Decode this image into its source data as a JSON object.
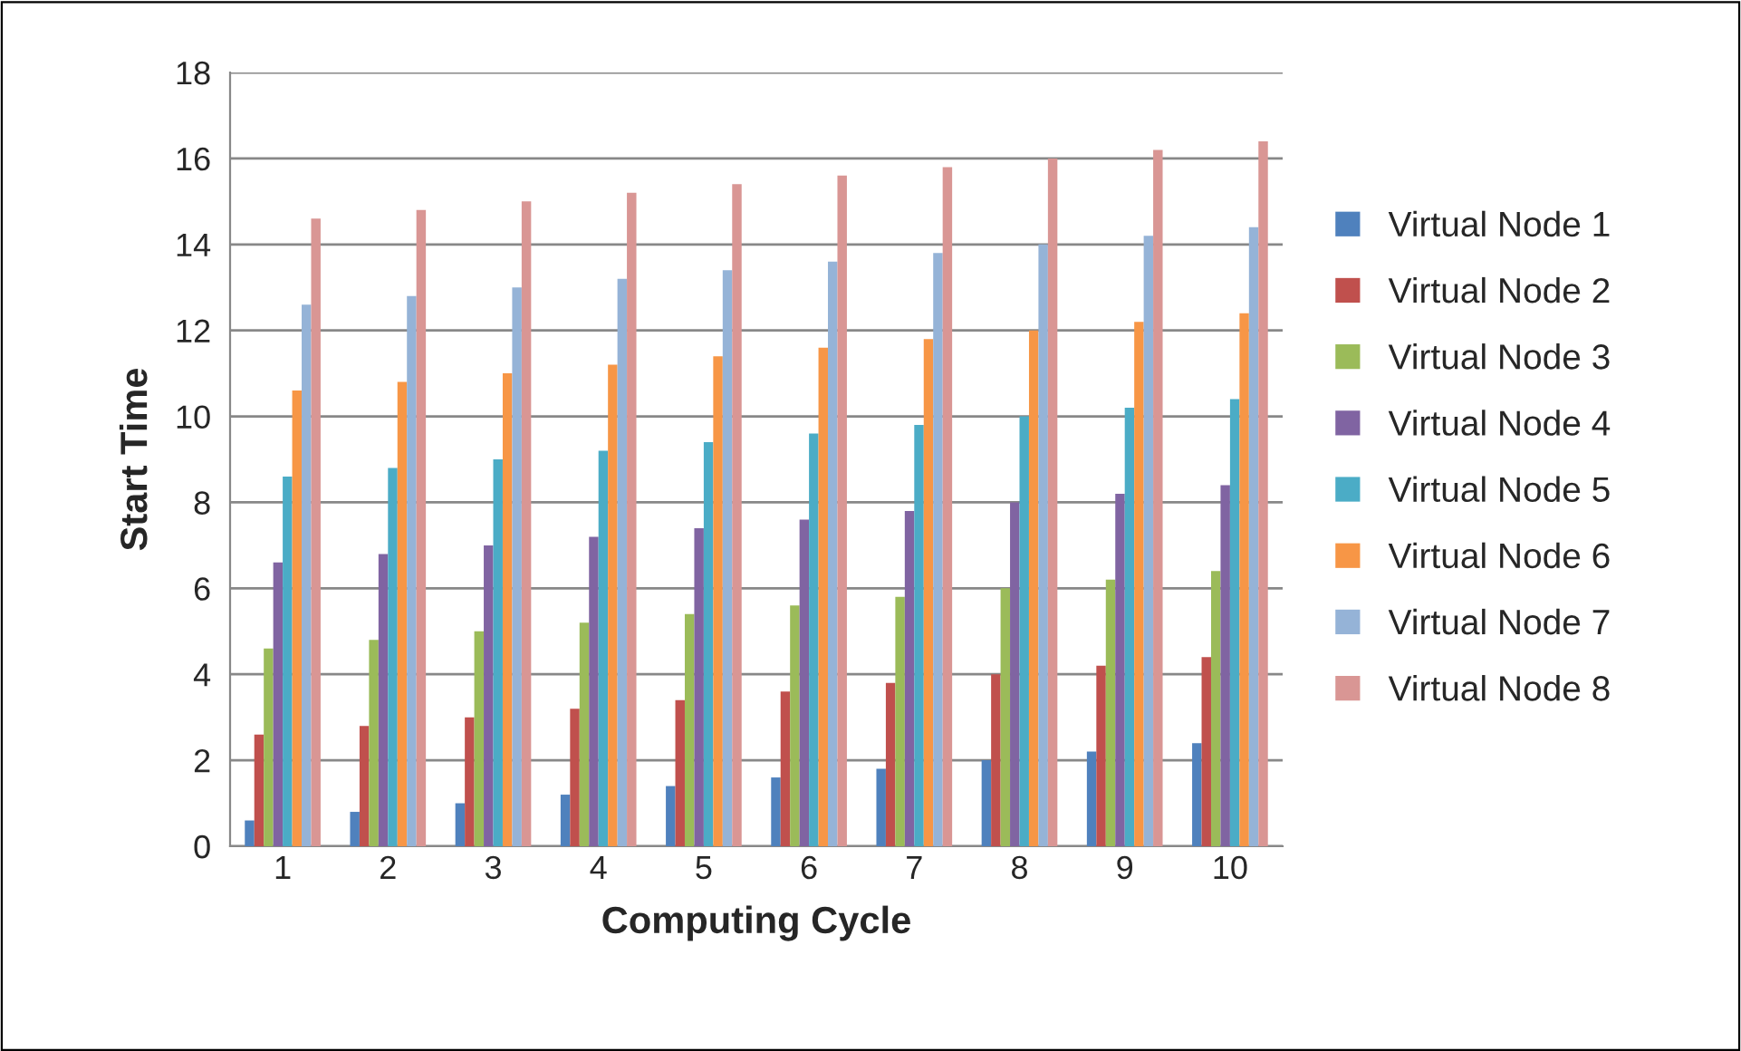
{
  "chart_data": {
    "type": "bar",
    "xlabel": "Computing Cycle",
    "ylabel": "Start Time",
    "categories": [
      "1",
      "2",
      "3",
      "4",
      "5",
      "6",
      "7",
      "8",
      "9",
      "10"
    ],
    "series": [
      {
        "name": "Virtual Node 1",
        "color": "#4f81bd",
        "values": [
          0.6,
          0.8,
          1.0,
          1.2,
          1.4,
          1.6,
          1.8,
          2.0,
          2.2,
          2.4
        ]
      },
      {
        "name": "Virtual Node 2",
        "color": "#c0504d",
        "values": [
          2.6,
          2.8,
          3.0,
          3.2,
          3.4,
          3.6,
          3.8,
          4.0,
          4.2,
          4.4
        ]
      },
      {
        "name": "Virtual Node 3",
        "color": "#9bbb59",
        "values": [
          4.6,
          4.8,
          5.0,
          5.2,
          5.4,
          5.6,
          5.8,
          6.0,
          6.2,
          6.4
        ]
      },
      {
        "name": "Virtual Node 4",
        "color": "#8064a2",
        "values": [
          6.6,
          6.8,
          7.0,
          7.2,
          7.4,
          7.6,
          7.8,
          8.0,
          8.2,
          8.4
        ]
      },
      {
        "name": "Virtual Node 5",
        "color": "#4bacc6",
        "values": [
          8.6,
          8.8,
          9.0,
          9.2,
          9.4,
          9.6,
          9.8,
          10.0,
          10.2,
          10.4
        ]
      },
      {
        "name": "Virtual Node 6",
        "color": "#f79646",
        "values": [
          10.6,
          10.8,
          11.0,
          11.2,
          11.4,
          11.6,
          11.8,
          12.0,
          12.2,
          12.4
        ]
      },
      {
        "name": "Virtual Node 7",
        "color": "#95b3d7",
        "values": [
          12.6,
          12.8,
          13.0,
          13.2,
          13.4,
          13.6,
          13.8,
          14.0,
          14.2,
          14.4
        ]
      },
      {
        "name": "Virtual Node 8",
        "color": "#d99694",
        "values": [
          14.6,
          14.8,
          15.0,
          15.2,
          15.4,
          15.6,
          15.8,
          16.0,
          16.2,
          16.4
        ]
      }
    ],
    "ylim": [
      0,
      18
    ],
    "yticks": [
      0,
      2,
      4,
      6,
      8,
      10,
      12,
      14,
      16,
      18
    ],
    "grid": "y",
    "legend": "right"
  }
}
